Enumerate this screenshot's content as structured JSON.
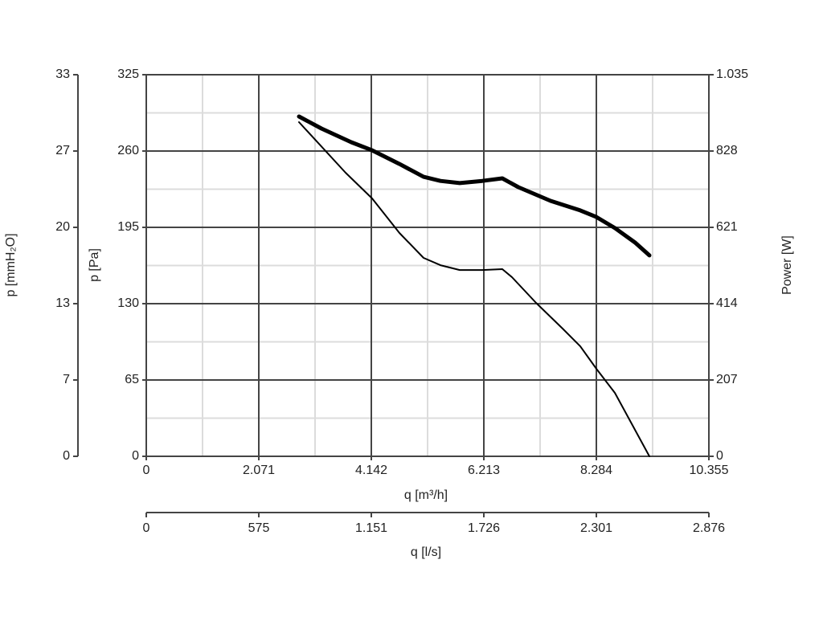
{
  "chart_data": {
    "type": "line",
    "xlabel": "q [m³/h]",
    "x2label": "q [l/s]",
    "ylabel": "p [Pa]",
    "y2label": "Power [W]",
    "y3label": "p [mmH₂O]",
    "xlim": [
      0,
      10355
    ],
    "xticks": [
      0,
      {
        "value": 2071,
        "label": "2.071"
      },
      {
        "value": 4142,
        "label": "4.142"
      },
      {
        "value": 6213,
        "label": "6.213"
      },
      {
        "value": 8284,
        "label": "8.284"
      },
      {
        "value": 10355,
        "label": "10.355"
      }
    ],
    "x2lim": [
      0,
      2876.39
    ],
    "x2ticks": [
      0,
      {
        "value": 575.28,
        "label": "575"
      },
      {
        "value": 1150.56,
        "label": "1.151"
      },
      {
        "value": 1725.83,
        "label": "1.726"
      },
      {
        "value": 2301.11,
        "label": "2.301"
      },
      {
        "value": 2876.39,
        "label": "2.876"
      }
    ],
    "ylim": [
      0,
      325
    ],
    "yticks": [
      0,
      65,
      130,
      195,
      260,
      325
    ],
    "y2lim": [
      0,
      1035
    ],
    "y2ticks": [
      0,
      207,
      414,
      621,
      828,
      {
        "value": 1035,
        "label": "1.035"
      }
    ],
    "y3lim": [
      0,
      33.141
    ],
    "y3ticks": [
      0,
      {
        "value": 6.628,
        "label": "7"
      },
      {
        "value": 13.256,
        "label": "13"
      },
      {
        "value": 19.885,
        "label": "20"
      },
      {
        "value": 26.513,
        "label": "27"
      },
      {
        "value": 33.141,
        "label": "33"
      }
    ],
    "grid": true,
    "series": [
      {
        "color": "#000000",
        "line_width": 2,
        "x": [
          2811,
          3669,
          4157,
          4660,
          5104,
          5414,
          5769,
          6184,
          6553,
          6731,
          7175,
          7663,
          7988,
          8284,
          8625,
          9260
        ],
        "values": [
          284.6,
          241.5,
          219.6,
          190.2,
          169.0,
          162.8,
          158.7,
          158.7,
          159.4,
          152.6,
          130.7,
          108.8,
          93.7,
          74.6,
          54.0,
          0
        ]
      },
      {
        "color": "#000000",
        "line_width": 5,
        "axis": "y2",
        "x": [
          2811,
          3225,
          3772,
          4157,
          4660,
          5104,
          5414,
          5769,
          6184,
          6553,
          6849,
          7441,
          7988,
          8284,
          8625,
          8994,
          9260
        ],
        "values": [
          921.7,
          889,
          852,
          830,
          793,
          758,
          747,
          741,
          747,
          754,
          730,
          693,
          667,
          649,
          619,
          580,
          545
        ]
      }
    ]
  }
}
